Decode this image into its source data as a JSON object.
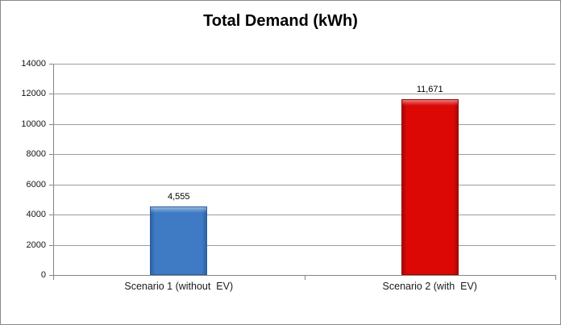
{
  "chart_data": {
    "type": "bar",
    "title": "Total Demand (kWh)",
    "categories": [
      "Scenario 1 (without  EV)",
      "Scenario 2 (with  EV)"
    ],
    "values": [
      4555,
      11671
    ],
    "value_labels": [
      "4,555",
      "11,671"
    ],
    "series_colors": [
      {
        "main": "#3E7BC4",
        "edge": "#2A5E9E"
      },
      {
        "main": "#DB0806",
        "edge": "#9C0604"
      }
    ],
    "xlabel": "",
    "ylabel": "",
    "ylim": [
      0,
      14000
    ],
    "ytick_step": 2000,
    "ytick_labels": [
      "0",
      "2000",
      "4000",
      "6000",
      "8000",
      "10000",
      "12000",
      "14000"
    ],
    "grid": "horizontal",
    "legend": "none"
  },
  "frame": {
    "background": "#FFFFFF",
    "border_color": "#898989",
    "gridline_color": "#9D9D9D",
    "axis_color": "#858585",
    "title_color": "#000000"
  }
}
